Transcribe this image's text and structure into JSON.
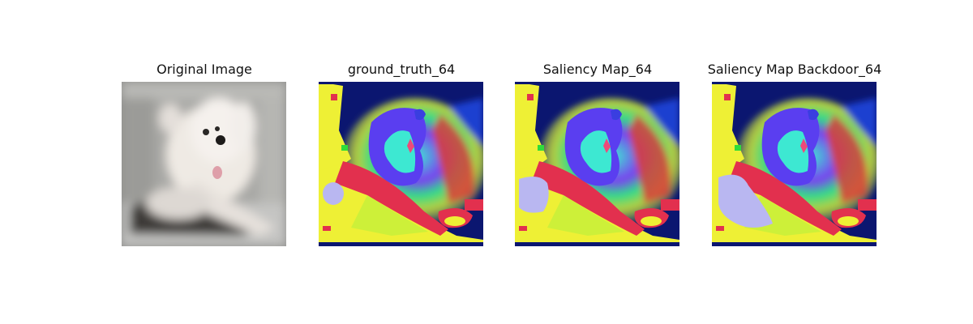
{
  "figure": {
    "panels": [
      {
        "title": "Original Image",
        "kind": "photo"
      },
      {
        "title": "ground_truth_64",
        "kind": "saliency"
      },
      {
        "title": "Saliency Map_64",
        "kind": "saliency"
      },
      {
        "title": "Saliency Map Backdoor_64",
        "kind": "saliency"
      }
    ]
  },
  "colors": {
    "navy": "#0b1670",
    "blue": "#2232c8",
    "yellow": "#eef035",
    "lime": "#c9f03a",
    "green": "#2fdc3a",
    "red": "#e2304e",
    "pink": "#ee4a7a",
    "purple": "#7a3ef0",
    "cyan": "#3de8d2",
    "lavender": "#b9b7f1",
    "photo_bg": "#a6a6a4",
    "photo_floor": "#c6c6c6",
    "dog": "#efeae4"
  }
}
